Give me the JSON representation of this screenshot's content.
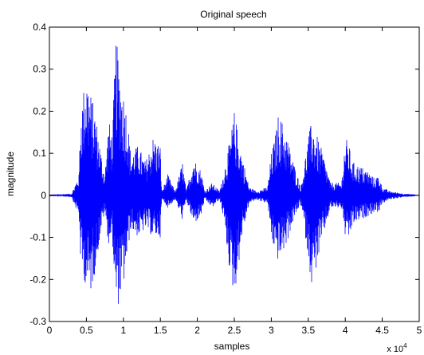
{
  "colors": {
    "signal": "#0000ff",
    "axes": "#000000",
    "background": "#ffffff"
  },
  "chart_data": {
    "type": "line",
    "title": "Original speech",
    "xlabel": "samples",
    "ylabel": "magnitude",
    "x_multiplier_label": "x 10",
    "x_multiplier_exponent": "4",
    "xlim": [
      0,
      5
    ],
    "ylim": [
      -0.3,
      0.4
    ],
    "grid": false,
    "legend": "none",
    "x_ticks": [
      0,
      0.5,
      1,
      1.5,
      2,
      2.5,
      3,
      3.5,
      4,
      4.5,
      5
    ],
    "x_tick_labels": [
      "0",
      "0.5",
      "1",
      "1.5",
      "2",
      "2.5",
      "3",
      "3.5",
      "4",
      "4.5",
      "5"
    ],
    "y_ticks": [
      -0.3,
      -0.2,
      -0.1,
      0,
      0.1,
      0.2,
      0.3,
      0.4
    ],
    "y_tick_labels": [
      "-0.3",
      "-0.2",
      "-0.1",
      "0",
      "0.1",
      "0.2",
      "0.3",
      "0.4"
    ],
    "series": [
      {
        "envelope_x": [
          0,
          0.3,
          0.4,
          0.42,
          0.45,
          0.5,
          0.55,
          0.62,
          0.7,
          0.75,
          0.8,
          0.85,
          0.9,
          0.95,
          1.0,
          1.05,
          1.1,
          1.2,
          1.3,
          1.4,
          1.5,
          1.52,
          1.6,
          1.7,
          1.8,
          1.85,
          1.95,
          2.05,
          2.1,
          2.2,
          2.3,
          2.35,
          2.45,
          2.5,
          2.55,
          2.6,
          2.7,
          2.8,
          2.95,
          3.0,
          3.05,
          3.1,
          3.2,
          3.3,
          3.4,
          3.5,
          3.55,
          3.6,
          3.7,
          3.8,
          3.95,
          4.0,
          4.05,
          4.1,
          4.2,
          4.3,
          4.4,
          4.45,
          4.5,
          4.6,
          4.8,
          5.0
        ],
        "envelope_max": [
          0.002,
          0.004,
          0.05,
          0.2,
          0.24,
          0.3,
          0.25,
          0.2,
          0.1,
          0.05,
          0.18,
          0.15,
          0.38,
          0.3,
          0.25,
          0.2,
          0.1,
          0.12,
          0.08,
          0.14,
          0.12,
          0.01,
          0.05,
          0.01,
          0.08,
          0.01,
          0.09,
          0.06,
          0.01,
          0.03,
          0.01,
          0.05,
          0.14,
          0.2,
          0.15,
          0.1,
          0.02,
          0.01,
          0.02,
          0.1,
          0.14,
          0.2,
          0.15,
          0.08,
          0.02,
          0.14,
          0.18,
          0.15,
          0.1,
          0.03,
          0.03,
          0.14,
          0.12,
          0.08,
          0.07,
          0.06,
          0.04,
          0.05,
          0.02,
          0.01,
          0.004,
          0.002
        ],
        "envelope_min": [
          -0.002,
          -0.004,
          -0.05,
          -0.15,
          -0.19,
          -0.22,
          -0.24,
          -0.18,
          -0.08,
          -0.04,
          -0.12,
          -0.1,
          -0.28,
          -0.25,
          -0.22,
          -0.15,
          -0.08,
          -0.1,
          -0.08,
          -0.1,
          -0.1,
          -0.01,
          -0.03,
          -0.01,
          -0.06,
          -0.01,
          -0.07,
          -0.05,
          -0.01,
          -0.03,
          -0.01,
          -0.05,
          -0.2,
          -0.24,
          -0.18,
          -0.1,
          -0.02,
          -0.01,
          -0.02,
          -0.1,
          -0.14,
          -0.16,
          -0.12,
          -0.06,
          -0.02,
          -0.15,
          -0.22,
          -0.18,
          -0.1,
          -0.03,
          -0.03,
          -0.1,
          -0.11,
          -0.07,
          -0.06,
          -0.05,
          -0.04,
          -0.04,
          -0.02,
          -0.01,
          -0.004,
          -0.002
        ]
      }
    ]
  }
}
